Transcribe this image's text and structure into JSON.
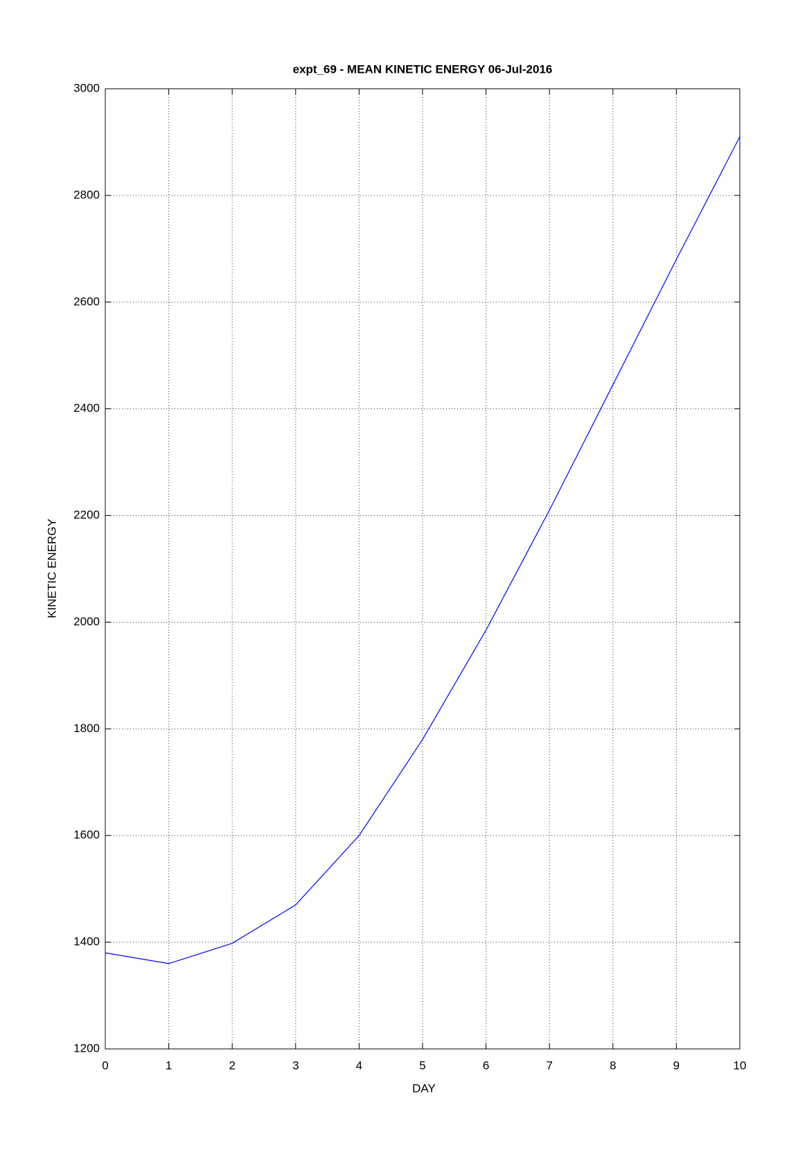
{
  "chart_data": {
    "type": "line",
    "title": "expt_69 - MEAN KINETIC ENERGY 06-Jul-2016",
    "x_label": "DAY",
    "y_label": "KINETIC ENERGY",
    "x": [
      0,
      1,
      2,
      3,
      4,
      5,
      6,
      7,
      8,
      9,
      10
    ],
    "series": [
      {
        "name": "KINETIC ENERGY",
        "color": "#0000ff",
        "values": [
          1380,
          1360,
          1398,
          1470,
          1600,
          1780,
          1985,
          2210,
          2445,
          2680,
          2910
        ]
      }
    ],
    "xlim": [
      0,
      10
    ],
    "xticks": [
      0,
      1,
      2,
      3,
      4,
      5,
      6,
      7,
      8,
      9,
      10
    ],
    "ylim": [
      1200,
      3000
    ],
    "yticks": [
      1200,
      1400,
      1600,
      1800,
      2000,
      2200,
      2400,
      2600,
      2800,
      3000
    ],
    "grid": true
  }
}
